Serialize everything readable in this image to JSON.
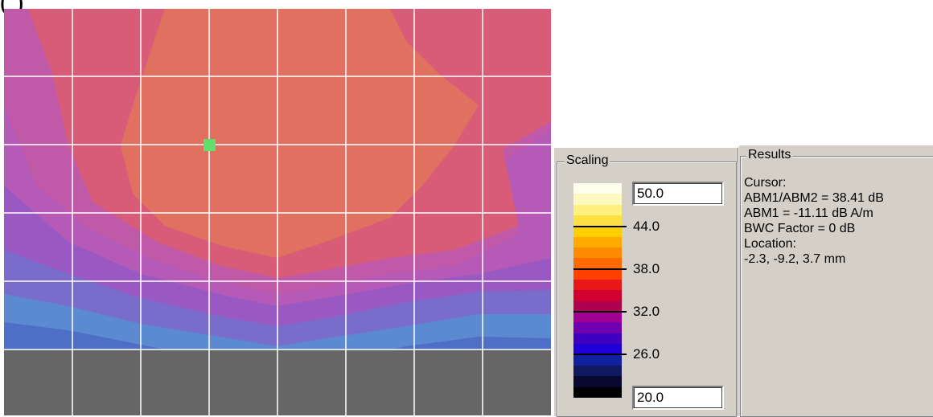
{
  "header": {
    "title_fragment": "(         )"
  },
  "plot": {
    "cursor_marker_color": "#5ee06a",
    "grid_color": "#ffffff",
    "floor_color": "#666666"
  },
  "scaling": {
    "label": "Scaling",
    "max_value": "50.0",
    "min_value": "20.0",
    "tick_labels": [
      "44.0",
      "38.0",
      "32.0",
      "26.0"
    ],
    "colors": [
      "#fffff0",
      "#fff8c0",
      "#fff080",
      "#ffe040",
      "#ffd000",
      "#ffaa00",
      "#ff8c00",
      "#ff6a00",
      "#ff4000",
      "#e81818",
      "#d00030",
      "#b00050",
      "#a00090",
      "#7000b0",
      "#4000c0",
      "#2000d8",
      "#1020a0",
      "#101860",
      "#080830",
      "#000000"
    ]
  },
  "results": {
    "label": "Results",
    "cursor_label": "Cursor:",
    "ratio_line": "ABM1/ABM2 = 38.41 dB",
    "abm1_line": "ABM1 = -11.11 dB A/m",
    "bwc_line": "BWC Factor = 0 dB",
    "location_label": "Location:",
    "location_value": "-2.3, -9.2, 3.7 mm"
  }
}
